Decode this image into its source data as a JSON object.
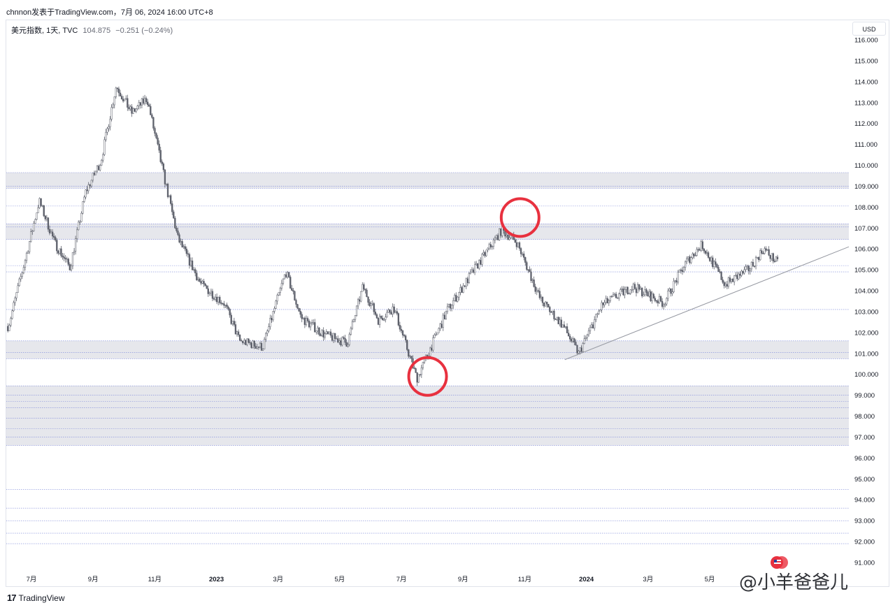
{
  "header": {
    "publisher_line": "chnnon发表于TradingView.com，7月 06, 2024 16:00 UTC+8"
  },
  "symbol": {
    "name_line": "美元指数, 1天, TVC",
    "last_price": "104.875",
    "change": "−0.251 (−0.24%)"
  },
  "currency_button": "USD",
  "footer": {
    "brand": "TradingView",
    "watermark": "@小羊爸爸儿"
  },
  "colors": {
    "candle": "#5d606b",
    "zone_fill": "#e6e7ec",
    "level_line": "#7b86d8",
    "circle": "#e8313f",
    "trendline": "#9598a1"
  },
  "chart_data": {
    "type": "candlestick",
    "title": "",
    "symbol": "美元指数, 1天, TVC",
    "x_tick_labels": [
      "7月",
      "9月",
      "11月",
      "2023",
      "3月",
      "5月",
      "7月",
      "9月",
      "11月",
      "2024",
      "3月",
      "5月"
    ],
    "y_tick_labels": [
      "116.000",
      "115.000",
      "114.000",
      "113.000",
      "112.000",
      "111.000",
      "110.000",
      "109.000",
      "108.000",
      "107.000",
      "106.000",
      "105.000",
      "104.000",
      "103.000",
      "102.000",
      "101.000",
      "100.000",
      "99.000",
      "98.000",
      "97.000",
      "96.000",
      "95.000",
      "94.000",
      "93.000",
      "92.000",
      "91.000"
    ],
    "ylim": [
      90.5,
      116.2
    ],
    "x_range": [
      "2022-06",
      "2024-07"
    ],
    "approx_close_path": [
      {
        "x": "2022-06",
        "y": 102.3
      },
      {
        "x": "2022-06",
        "y": 105.2
      },
      {
        "x": "2022-07",
        "y": 108.3
      },
      {
        "x": "2022-07",
        "y": 106.3
      },
      {
        "x": "2022-08",
        "y": 105.1
      },
      {
        "x": "2022-08",
        "y": 108.7
      },
      {
        "x": "2022-09",
        "y": 110.2
      },
      {
        "x": "2022-09",
        "y": 113.8
      },
      {
        "x": "2022-10",
        "y": 112.5
      },
      {
        "x": "2022-10",
        "y": 113.2
      },
      {
        "x": "2022-11",
        "y": 109.8
      },
      {
        "x": "2022-11",
        "y": 106.5
      },
      {
        "x": "2022-12",
        "y": 104.3
      },
      {
        "x": "2023-01",
        "y": 103.4
      },
      {
        "x": "2023-01",
        "y": 101.6
      },
      {
        "x": "2023-02",
        "y": 101.3
      },
      {
        "x": "2023-03",
        "y": 104.9
      },
      {
        "x": "2023-03",
        "y": 102.7
      },
      {
        "x": "2023-04",
        "y": 101.9
      },
      {
        "x": "2023-05",
        "y": 101.5
      },
      {
        "x": "2023-05",
        "y": 104.2
      },
      {
        "x": "2023-06",
        "y": 102.6
      },
      {
        "x": "2023-06",
        "y": 103.2
      },
      {
        "x": "2023-07",
        "y": 99.8
      },
      {
        "x": "2023-08",
        "y": 103.1
      },
      {
        "x": "2023-09",
        "y": 105.3
      },
      {
        "x": "2023-10",
        "y": 106.9
      },
      {
        "x": "2023-10",
        "y": 106.3
      },
      {
        "x": "2023-11",
        "y": 103.6
      },
      {
        "x": "2023-12",
        "y": 102.3
      },
      {
        "x": "2023-12",
        "y": 101.0
      },
      {
        "x": "2024-01",
        "y": 103.3
      },
      {
        "x": "2024-02",
        "y": 104.2
      },
      {
        "x": "2024-03",
        "y": 103.4
      },
      {
        "x": "2024-04",
        "y": 105.4
      },
      {
        "x": "2024-04",
        "y": 106.2
      },
      {
        "x": "2024-05",
        "y": 104.3
      },
      {
        "x": "2024-06",
        "y": 105.0
      },
      {
        "x": "2024-06",
        "y": 106.0
      },
      {
        "x": "2024-07",
        "y": 104.875
      }
    ],
    "horizontal_zones": [
      {
        "from": 108.9,
        "to": 109.65
      },
      {
        "from": 106.45,
        "to": 107.2
      },
      {
        "from": 100.75,
        "to": 101.6
      },
      {
        "from": 96.6,
        "to": 99.45
      }
    ],
    "horizontal_levels": [
      109.65,
      109.0,
      108.9,
      108.05,
      107.2,
      107.05,
      106.45,
      105.2,
      104.9,
      103.1,
      101.6,
      101.05,
      100.75,
      99.45,
      99.0,
      98.7,
      98.4,
      97.9,
      97.4,
      97.0,
      96.6,
      94.5,
      93.6,
      93.0,
      92.4,
      91.9
    ],
    "trendline": {
      "from": {
        "x": "2023-12",
        "y": 100.7
      },
      "to": {
        "x": "2024-07",
        "y": 106.1
      }
    },
    "annotations": [
      {
        "type": "circle",
        "x": "2023-07",
        "y": 99.9
      },
      {
        "type": "circle",
        "x": "2023-10",
        "y": 107.5
      }
    ],
    "grid": false,
    "legend": "none"
  }
}
